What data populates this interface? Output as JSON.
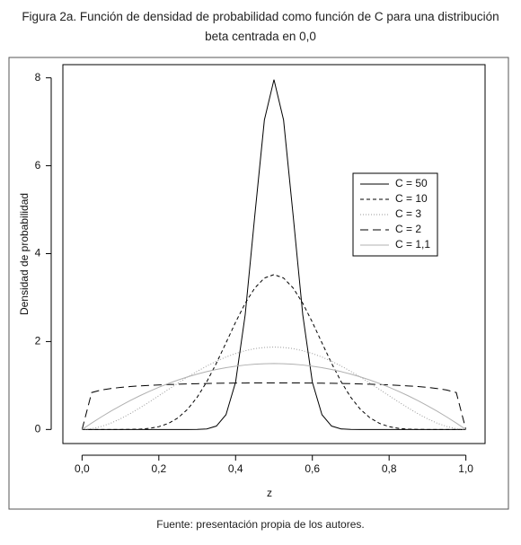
{
  "chart_data": {
    "type": "line",
    "title": "Figura 2a. Función de densidad de probabilidad como función de C para una distribución beta centrada en 0,0",
    "source": "Fuente: presentación propia de los autores.",
    "x_label": "z",
    "y_label": "Densidad de probabilidad",
    "x": [
      0,
      0.025,
      0.05,
      0.075,
      0.1,
      0.125,
      0.15,
      0.175,
      0.2,
      0.225,
      0.25,
      0.275,
      0.3,
      0.325,
      0.35,
      0.375,
      0.4,
      0.425,
      0.45,
      0.475,
      0.5,
      0.525,
      0.55,
      0.575,
      0.6,
      0.625,
      0.65,
      0.675,
      0.7,
      0.725,
      0.75,
      0.775,
      0.8,
      0.825,
      0.85,
      0.875,
      0.9,
      0.925,
      0.95,
      0.975,
      1
    ],
    "series": [
      {
        "name": "C = 50",
        "color": "#000000",
        "dash": "none",
        "values": [
          0,
          0,
          0,
          0,
          0,
          0,
          0,
          0,
          0,
          0,
          0,
          0,
          0.002,
          0.013,
          0.078,
          0.337,
          1.077,
          2.61,
          4.864,
          7.041,
          7.959,
          7.041,
          4.864,
          2.61,
          1.077,
          0.337,
          0.078,
          0.013,
          0.002,
          0,
          0,
          0,
          0,
          0,
          0,
          0,
          0,
          0,
          0,
          0,
          0
        ]
      },
      {
        "name": "C = 10",
        "color": "#000000",
        "dash": "4,3",
        "values": [
          0,
          0,
          0,
          0,
          0,
          0.002,
          0.008,
          0.025,
          0.064,
          0.138,
          0.265,
          0.46,
          0.734,
          1.087,
          1.508,
          1.971,
          2.44,
          2.871,
          3.219,
          3.445,
          3.524,
          3.445,
          3.219,
          2.871,
          2.44,
          1.971,
          1.508,
          1.087,
          0.734,
          0.46,
          0.265,
          0.138,
          0.064,
          0.025,
          0.008,
          0.002,
          0,
          0,
          0,
          0,
          0
        ]
      },
      {
        "name": "C = 3",
        "color": "#999999",
        "dash": "1,2",
        "values": [
          0,
          0.018,
          0.068,
          0.144,
          0.243,
          0.359,
          0.488,
          0.625,
          0.768,
          0.912,
          1.055,
          1.193,
          1.323,
          1.444,
          1.553,
          1.648,
          1.728,
          1.792,
          1.838,
          1.866,
          1.875,
          1.866,
          1.838,
          1.792,
          1.728,
          1.648,
          1.553,
          1.444,
          1.323,
          1.193,
          1.055,
          0.912,
          0.768,
          0.625,
          0.488,
          0.359,
          0.243,
          0.144,
          0.068,
          0.018,
          0
        ]
      },
      {
        "name": "C = 2",
        "color": "#000000",
        "dash": "9,5",
        "values": [
          0,
          0.84,
          0.898,
          0.932,
          0.957,
          0.976,
          0.991,
          1.003,
          1.014,
          1.022,
          1.03,
          1.036,
          1.042,
          1.046,
          1.05,
          1.053,
          1.056,
          1.057,
          1.059,
          1.06,
          1.06,
          1.06,
          1.059,
          1.057,
          1.056,
          1.053,
          1.05,
          1.046,
          1.042,
          1.036,
          1.03,
          1.022,
          1.014,
          1.003,
          0.991,
          0.976,
          0.957,
          0.932,
          0.898,
          0.84,
          0
        ]
      },
      {
        "name": "C = 1,1",
        "color": "#b0b0b0",
        "dash": "none",
        "values": [
          0,
          0.146,
          0.285,
          0.416,
          0.54,
          0.656,
          0.765,
          0.866,
          0.96,
          1.046,
          1.125,
          1.196,
          1.26,
          1.316,
          1.365,
          1.406,
          1.44,
          1.466,
          1.485,
          1.496,
          1.5,
          1.496,
          1.485,
          1.466,
          1.44,
          1.406,
          1.365,
          1.316,
          1.26,
          1.196,
          1.125,
          1.046,
          0.96,
          0.866,
          0.765,
          0.656,
          0.54,
          0.416,
          0.285,
          0.146,
          0
        ]
      }
    ],
    "xlim": [
      -0.05,
      1.05
    ],
    "ylim": [
      -0.32,
      8.3
    ],
    "xticks": [
      {
        "value": 0,
        "label": "0,0"
      },
      {
        "value": 0.2,
        "label": "0,2"
      },
      {
        "value": 0.4,
        "label": "0,4"
      },
      {
        "value": 0.6,
        "label": "0,6"
      },
      {
        "value": 0.8,
        "label": "0,8"
      },
      {
        "value": 1,
        "label": "1,0"
      }
    ],
    "yticks": [
      0,
      2,
      4,
      6,
      8
    ]
  }
}
